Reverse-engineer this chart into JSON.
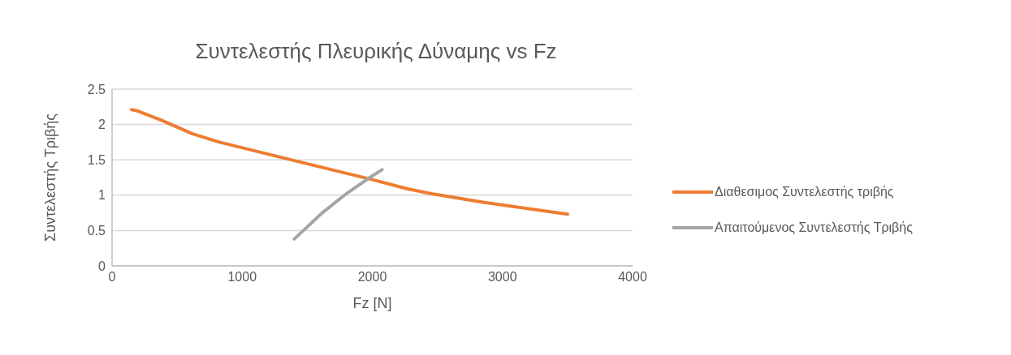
{
  "chart_data": {
    "type": "line",
    "title": "Συντελεστής Πλευρικής Δύναμης vs Fz",
    "xlabel": "Fz [N]",
    "ylabel": "Συντελεστής Τριβής",
    "xlim": [
      0,
      4000
    ],
    "xticks": [
      0,
      1000,
      2000,
      3000,
      4000
    ],
    "ylim": [
      0,
      2.5
    ],
    "yticks": [
      0,
      0.5,
      1,
      1.5,
      2,
      2.5
    ],
    "grid": "y",
    "legend": "right",
    "marker": "none",
    "series": [
      {
        "name": "Διαθεσιμος Συντελεστής τριβής",
        "color": "#ed7d31",
        "x": [
          150,
          200,
          380,
          615,
          825,
          1400,
          2000,
          2270,
          2455,
          2850,
          3500
        ],
        "values": [
          2.21,
          2.19,
          2.06,
          1.87,
          1.75,
          1.49,
          1.22,
          1.09,
          1.02,
          0.9,
          0.73
        ]
      },
      {
        "name": "Απαιτούμενος Συντελεστής Τριβής",
        "color": "#a5a5a5",
        "x": [
          1400,
          1615,
          1800,
          1980,
          2075
        ],
        "values": [
          0.38,
          0.75,
          1.02,
          1.25,
          1.36
        ]
      }
    ]
  }
}
